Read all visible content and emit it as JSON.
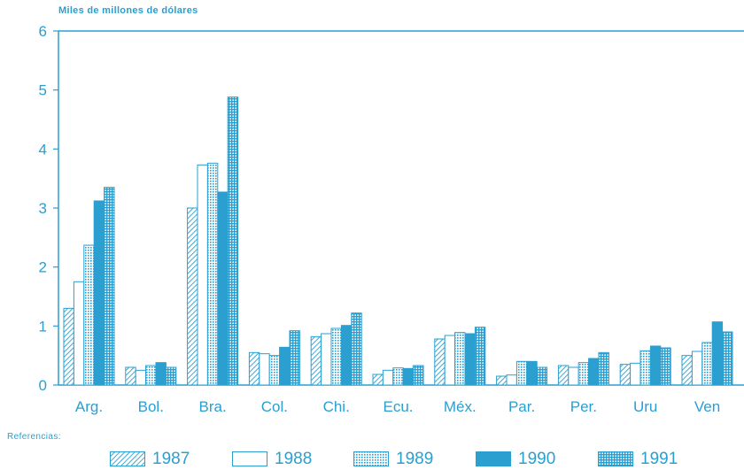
{
  "chart_data": {
    "type": "bar",
    "ylabel": "Miles de millones de dólares",
    "ylim": [
      0,
      6
    ],
    "yticks": [
      "0",
      "1",
      "2",
      "3",
      "4",
      "5",
      "6"
    ],
    "categories": [
      "Arg.",
      "Bol.",
      "Bra.",
      "Col.",
      "Chi.",
      "Ecu.",
      "Méx.",
      "Par.",
      "Per.",
      "Uru",
      "Ven"
    ],
    "series": [
      {
        "name": "1987",
        "values": [
          1.3,
          0.3,
          3.0,
          0.55,
          0.82,
          0.18,
          0.78,
          0.15,
          0.33,
          0.35,
          0.5
        ]
      },
      {
        "name": "1988",
        "values": [
          1.75,
          0.25,
          3.73,
          0.53,
          0.87,
          0.25,
          0.84,
          0.17,
          0.3,
          0.37,
          0.57
        ]
      },
      {
        "name": "1989",
        "values": [
          2.37,
          0.33,
          3.76,
          0.5,
          0.96,
          0.29,
          0.89,
          0.4,
          0.38,
          0.58,
          0.72
        ]
      },
      {
        "name": "1990",
        "values": [
          3.12,
          0.38,
          3.27,
          0.64,
          1.01,
          0.28,
          0.87,
          0.4,
          0.45,
          0.66,
          1.07
        ]
      },
      {
        "name": "1991",
        "values": [
          3.35,
          0.3,
          4.88,
          0.92,
          1.22,
          0.33,
          0.98,
          0.3,
          0.55,
          0.63,
          0.9
        ]
      }
    ],
    "legend_title": "Referencias:",
    "legend_position": "bottom",
    "grid": false,
    "colors": {
      "accent": "#2a9fd0"
    }
  }
}
